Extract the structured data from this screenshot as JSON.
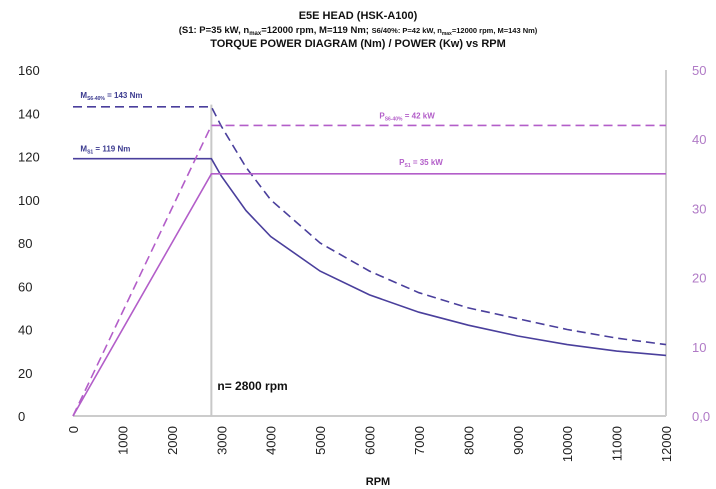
{
  "chart_data": {
    "type": "line",
    "title": "E5E HEAD (HSK-A100)",
    "subtitle_prefix": "(S1: P=35 kW, n",
    "subtitle_max_sub": "max",
    "subtitle_mid": "=12000 rpm, M=119 Nm; ",
    "subtitle_s6_a": "S6/40%: P=42 kW, n",
    "subtitle_s6_sub": "max",
    "subtitle_s6_b": "=12000 rpm, M=143 Nm)",
    "title_line3": "TORQUE POWER DIAGRAM (Nm) / POWER (Kw) vs RPM",
    "xlabel": "RPM",
    "ylabel": "",
    "xlim": [
      0,
      12000
    ],
    "ylim": [
      0,
      160
    ],
    "y2lim": [
      0,
      50
    ],
    "x_ticks": [
      "0",
      "1000",
      "2000",
      "3000",
      "4000",
      "5000",
      "6000",
      "7000",
      "8000",
      "9000",
      "10000",
      "11000",
      "12000"
    ],
    "y_ticks": [
      "0",
      "20",
      "40",
      "60",
      "80",
      "100",
      "120",
      "140",
      "160"
    ],
    "y2_ticks": [
      "0,0",
      "10",
      "20",
      "30",
      "40",
      "50"
    ],
    "base_speed_rpm": 2800,
    "base_speed_label": "n= 2800 rpm",
    "annotations": {
      "m_s6": {
        "main": "M",
        "sub": "S6-40%",
        "rest": " = 143 Nm"
      },
      "m_s1": {
        "main": "M",
        "sub": "S1",
        "rest": " = 119 Nm"
      },
      "p_s6": {
        "main": "P",
        "sub": "S6-40%",
        "rest": " = 42 kW"
      },
      "p_s1": {
        "main": "P",
        "sub": "S1",
        "rest": " = 35 kW"
      }
    },
    "series": [
      {
        "key": "torque_s1",
        "axis": "left",
        "style": "solid",
        "color": "#4a3f9c",
        "x": [
          0,
          2800,
          3000,
          3500,
          4000,
          5000,
          6000,
          7000,
          8000,
          9000,
          10000,
          11000,
          12000
        ],
        "y": [
          119,
          119,
          111,
          95,
          83,
          67,
          56,
          48,
          42,
          37,
          33,
          30,
          28
        ]
      },
      {
        "key": "torque_s6",
        "axis": "left",
        "style": "dashed",
        "color": "#4a3f9c",
        "x": [
          0,
          2800,
          3000,
          3500,
          4000,
          5000,
          6000,
          7000,
          8000,
          9000,
          10000,
          11000,
          12000
        ],
        "y": [
          143,
          143,
          134,
          115,
          100,
          80,
          67,
          57,
          50,
          45,
          40,
          36,
          33
        ]
      },
      {
        "key": "power_s1",
        "axis": "right",
        "style": "solid",
        "color": "#b35ec9",
        "x": [
          0,
          2800,
          12000
        ],
        "y": [
          0,
          35,
          35
        ]
      },
      {
        "key": "power_s6",
        "axis": "right",
        "style": "dashed",
        "color": "#b35ec9",
        "x": [
          0,
          2800,
          12000
        ],
        "y": [
          0,
          42,
          42
        ]
      }
    ]
  }
}
